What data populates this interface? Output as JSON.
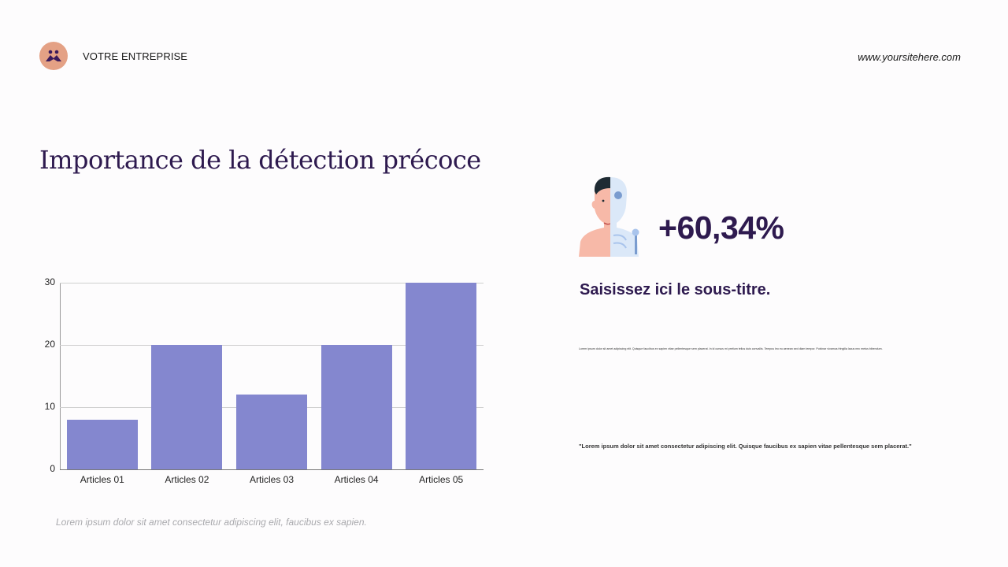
{
  "header": {
    "logo_icon": "people-icon",
    "company_name": "VOTRE ENTREPRISE",
    "website": "www.yoursitehere.com"
  },
  "slide": {
    "title": "Importance de la détection précoce",
    "caption": "Lorem ipsum dolor sit amet consectetur adipiscing elit, faucibus ex sapien."
  },
  "stat_panel": {
    "illustration": "human-skeleton-xray-icon",
    "value": "+60,34%",
    "subtitle": "Saisissez ici le sous-titre.",
    "paragraph": "Lorem ipsum dolor sit amet adipiscing elit. Quisque faucibus ex sapien vitae pellentesque sem placerat. In id cursus mi pretium tellus duis convallis. Tempus leo eu aenean sed diam tempor. Pulvinar vivamus fringilla lacus nec metus bibendum.",
    "quote": "\"Lorem ipsum dolor sit amet consectetur adipiscing elit. Quisque faucibus ex sapien vitae pellentesque sem placerat.\""
  },
  "colors": {
    "accent": "#2e1a4f",
    "bar": "#8487cf",
    "logo_bg": "#e4a185"
  },
  "chart_data": {
    "type": "bar",
    "title": "",
    "categories": [
      "Articles 01",
      "Articles 02",
      "Articles 03",
      "Articles 04",
      "Articles 05"
    ],
    "values": [
      8,
      20,
      12,
      20,
      30
    ],
    "xlabel": "",
    "ylabel": "",
    "ylim": [
      0,
      30
    ],
    "yticks": [
      "0",
      "10",
      "20",
      "30"
    ],
    "grid": true,
    "legend": null
  }
}
